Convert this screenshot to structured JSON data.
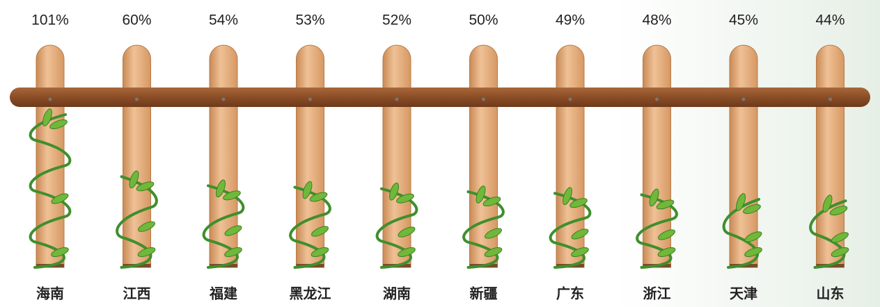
{
  "chart_data": {
    "type": "bar",
    "categories": [
      "海南",
      "江西",
      "福建",
      "黑龙江",
      "湖南",
      "新疆",
      "广东",
      "浙江",
      "天津",
      "山东"
    ],
    "values": [
      101,
      60,
      54,
      53,
      52,
      50,
      49,
      48,
      45,
      44
    ],
    "value_labels": [
      "101%",
      "60%",
      "54%",
      "53%",
      "52%",
      "50%",
      "49%",
      "48%",
      "45%",
      "44%"
    ],
    "color": "#3f8f2c"
  }
}
